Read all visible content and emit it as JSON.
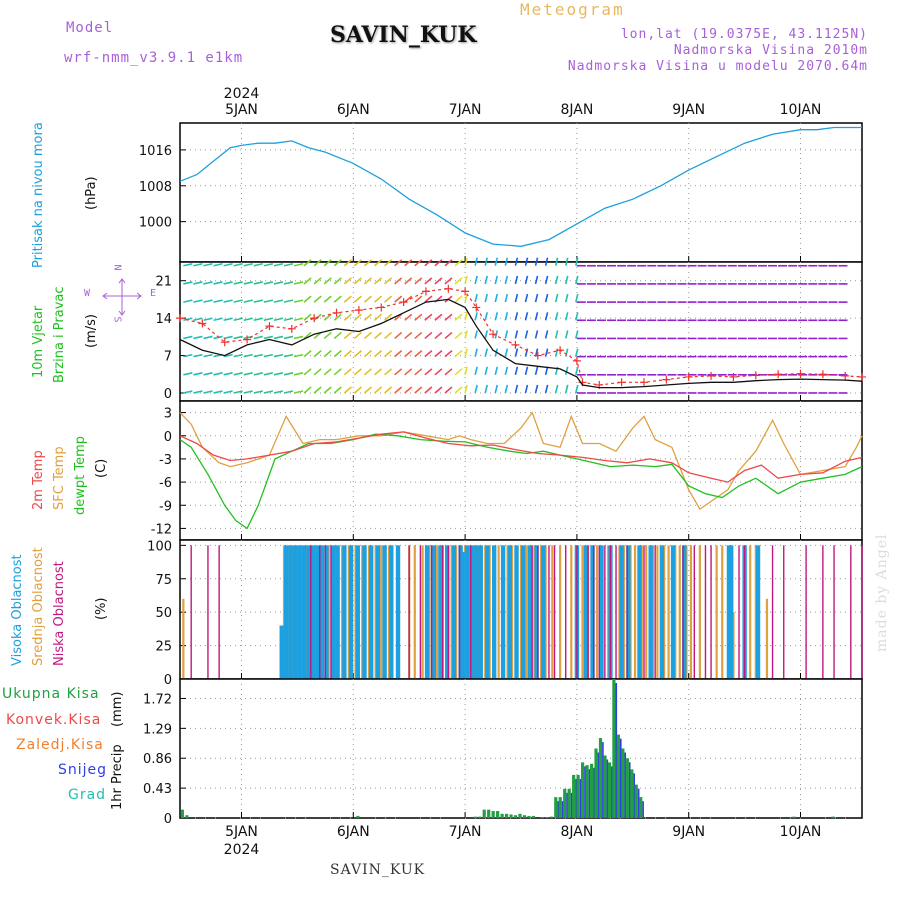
{
  "header": {
    "model_label": "Model",
    "model_name": "wrf-nmm_v3.9.1 e1km",
    "station": "SAVIN_KUK",
    "meteogram": "Meteogram",
    "lonlat": "lon,lat (19.0375E, 43.1125N)",
    "altitude": "Nadmorska Visina 2010m",
    "model_altitude": "Nadmorska Visina u modelu 2070.64m"
  },
  "footer": {
    "station": "SAVIN_KUK",
    "made_by": "made by Angel"
  },
  "colors": {
    "pressure": "#1ca0e0",
    "wind_speed": "#111111",
    "gust": "#f03030",
    "t2m": "#f04848",
    "sfc": "#e0a040",
    "dewpt": "#20c020",
    "cloud_high": "#1ca0e0",
    "cloud_mid": "#e0a040",
    "cloud_low": "#c01880",
    "precip_total": "#20a040",
    "precip_conv": "#f04848",
    "precip_frz": "#f08030",
    "precip_snow": "#3040e0",
    "precip_grad": "#20c0b0"
  },
  "chart_data": [
    {
      "type": "line",
      "id": "pressure",
      "x_unit": "days since 5JAN 2024 00UTC",
      "xlim": [
        -0.55,
        5.55
      ],
      "x_ticks": [
        0,
        1,
        2,
        3,
        4,
        5
      ],
      "x_tick_labels": [
        "5JAN",
        "6JAN",
        "7JAN",
        "8JAN",
        "9JAN",
        "10JAN"
      ],
      "x_year_label": "2024",
      "ylabel_left": "Pritisak na nivou mora",
      "ylabel_unit": "(hPa)",
      "ylim": [
        991,
        1022
      ],
      "y_ticks": [
        1000,
        1008,
        1016
      ],
      "series": [
        {
          "x": [
            -0.55,
            -0.4,
            -0.25,
            -0.1,
            0.0,
            0.15,
            0.3,
            0.45,
            0.6,
            0.75,
            1.0,
            1.25,
            1.5,
            1.75,
            2.0,
            2.25,
            2.5,
            2.75,
            3.0,
            3.25,
            3.5,
            3.75,
            4.0,
            4.25,
            4.5,
            4.75,
            5.0,
            5.15,
            5.3,
            5.45,
            5.55
          ],
          "y": [
            1009,
            1010.5,
            1013.5,
            1016.5,
            1017,
            1017.5,
            1017.5,
            1018,
            1016.5,
            1015.5,
            1013,
            1009.5,
            1005,
            1001.5,
            997.5,
            995,
            994.5,
            996,
            999.5,
            1003,
            1005,
            1008,
            1011.5,
            1014.5,
            1017.5,
            1019.5,
            1020.5,
            1020.5,
            1021,
            1021,
            1021
          ]
        }
      ]
    },
    {
      "type": "line",
      "id": "wind",
      "ylabel_left": "10m Vjetar",
      "ylabel_left2": "Brzina i Pravac",
      "ylabel_unit": "(m/s)",
      "compass_labels": {
        "n": "N",
        "s": "S",
        "e": "E",
        "w": "W"
      },
      "ylim": [
        -1.5,
        24.5
      ],
      "y_ticks": [
        0,
        7,
        14,
        21
      ],
      "series": [
        {
          "name": "wind_speed",
          "x": [
            -0.55,
            -0.35,
            -0.15,
            0.05,
            0.25,
            0.45,
            0.65,
            0.85,
            1.05,
            1.25,
            1.45,
            1.65,
            1.85,
            2.0,
            2.1,
            2.25,
            2.45,
            2.65,
            2.85,
            3.0,
            3.05,
            3.2,
            3.4,
            3.6,
            3.8,
            4.0,
            4.2,
            4.4,
            4.6,
            4.8,
            5.0,
            5.2,
            5.4,
            5.55
          ],
          "y": [
            10,
            8,
            7,
            9,
            10,
            9,
            11,
            12,
            11.5,
            13,
            15,
            17,
            17.5,
            16,
            12.5,
            8,
            5.5,
            5,
            4.5,
            3,
            1.5,
            1,
            1,
            1.2,
            1.5,
            1.8,
            2,
            2,
            2.3,
            2.5,
            2.6,
            2.5,
            2.4,
            2.2
          ]
        },
        {
          "name": "gust",
          "x": [
            -0.55,
            -0.35,
            -0.15,
            0.05,
            0.25,
            0.45,
            0.65,
            0.85,
            1.05,
            1.25,
            1.45,
            1.65,
            1.85,
            2.0,
            2.1,
            2.25,
            2.45,
            2.65,
            2.85,
            3.0,
            3.05,
            3.2,
            3.4,
            3.6,
            3.8,
            4.0,
            4.2,
            4.4,
            4.6,
            4.8,
            5.0,
            5.2,
            5.4,
            5.55
          ],
          "y": [
            14,
            13,
            9.5,
            10,
            12.5,
            12,
            14,
            15,
            15.5,
            16,
            17,
            19,
            19.5,
            19,
            16,
            11,
            9,
            7,
            8,
            6,
            2,
            1.5,
            2,
            2,
            2.5,
            3,
            3.2,
            3,
            3.3,
            3.5,
            3.6,
            3.5,
            3.2,
            3
          ]
        }
      ]
    },
    {
      "type": "line",
      "id": "temperature",
      "ylabel_lines": [
        "2m Temp",
        "SFC Temp",
        "dewpt Temp"
      ],
      "ylabel_unit": "(C)",
      "ylim": [
        -13.5,
        4.5
      ],
      "y_ticks": [
        3,
        0,
        -3,
        -6,
        -9,
        -12
      ],
      "series": [
        {
          "name": "2m Temp",
          "x": [
            -0.55,
            -0.4,
            -0.25,
            -0.1,
            0.05,
            0.25,
            0.45,
            0.65,
            0.85,
            1.05,
            1.25,
            1.45,
            1.65,
            1.85,
            2.05,
            2.25,
            2.45,
            2.65,
            2.85,
            3.05,
            3.25,
            3.45,
            3.65,
            3.85,
            4.0,
            4.2,
            4.35,
            4.5,
            4.65,
            4.8,
            5.0,
            5.2,
            5.4,
            5.55
          ],
          "y": [
            0,
            -1,
            -2.5,
            -3.2,
            -3,
            -2.5,
            -2,
            -1,
            -0.8,
            -0.3,
            0.2,
            0.5,
            -0.3,
            -1,
            -1.3,
            -1.2,
            -1.8,
            -2.3,
            -2.5,
            -2.8,
            -3.2,
            -3.5,
            -3,
            -3.5,
            -4.8,
            -5.5,
            -6,
            -4.5,
            -3.8,
            -5.5,
            -5,
            -4.8,
            -3.3,
            -2.8
          ]
        },
        {
          "name": "SFC Temp",
          "x": [
            -0.55,
            -0.45,
            -0.35,
            -0.2,
            -0.1,
            0.05,
            0.25,
            0.4,
            0.55,
            0.7,
            0.85,
            1.05,
            1.25,
            1.45,
            1.65,
            1.85,
            1.95,
            2.05,
            2.2,
            2.35,
            2.5,
            2.6,
            2.7,
            2.85,
            2.95,
            3.05,
            3.2,
            3.35,
            3.5,
            3.6,
            3.7,
            3.85,
            4.0,
            4.1,
            4.2,
            4.35,
            4.45,
            4.6,
            4.75,
            4.85,
            5.0,
            5.2,
            5.4,
            5.5,
            5.55
          ],
          "y": [
            3,
            1.5,
            -1.5,
            -3.5,
            -4,
            -3.5,
            -2.5,
            2.5,
            -1,
            -0.5,
            -0.5,
            0,
            0,
            0.5,
            0,
            -0.5,
            0,
            -0.5,
            -1,
            -1,
            1,
            3,
            -1,
            -1.5,
            2.5,
            -1,
            -1,
            -2,
            1,
            2.5,
            -0.5,
            -1.5,
            -7,
            -9.5,
            -8.5,
            -7,
            -4.5,
            -2,
            2,
            -1,
            -5,
            -4.5,
            -4,
            -1.5,
            0
          ]
        },
        {
          "name": "dewpt Temp",
          "x": [
            -0.55,
            -0.45,
            -0.3,
            -0.15,
            -0.05,
            0.05,
            0.15,
            0.3,
            0.45,
            0.6,
            0.8,
            1.0,
            1.2,
            1.4,
            1.6,
            1.8,
            2.0,
            2.2,
            2.4,
            2.55,
            2.7,
            2.85,
            3.0,
            3.15,
            3.3,
            3.5,
            3.7,
            3.85,
            4.0,
            4.15,
            4.3,
            4.45,
            4.6,
            4.8,
            5.0,
            5.2,
            5.4,
            5.55
          ],
          "y": [
            -0.5,
            -1.5,
            -5,
            -9,
            -11,
            -12,
            -9,
            -3,
            -2,
            -1,
            -1,
            -0.5,
            0.2,
            0,
            -0.5,
            -0.7,
            -0.8,
            -1.5,
            -2,
            -2.3,
            -2,
            -2.5,
            -3,
            -3.5,
            -4,
            -3.8,
            -4,
            -3.7,
            -6.5,
            -7.5,
            -8,
            -6.5,
            -5.5,
            -7.5,
            -6,
            -5.5,
            -5,
            -4
          ]
        }
      ]
    },
    {
      "type": "bar",
      "id": "clouds",
      "ylabel_lines": [
        "Visoka Oblacnost",
        "Srednja Oblacnost",
        "Niska Oblacnost"
      ],
      "ylabel_unit": "(%)",
      "ylim": [
        0,
        104
      ],
      "y_ticks": [
        0,
        25,
        50,
        75,
        100
      ],
      "low": {
        "x": [
          -0.45,
          -0.3,
          -0.2,
          0.62,
          0.7,
          0.75,
          0.8,
          1.5,
          1.6,
          1.7,
          1.8,
          1.85,
          1.95,
          2.05,
          2.6,
          2.65,
          2.75,
          2.8,
          2.9,
          3.0,
          3.1,
          3.15,
          3.2,
          3.25,
          3.3,
          3.35,
          3.45,
          3.6,
          3.7,
          3.95,
          4.05,
          4.15,
          4.2,
          4.45,
          4.5,
          4.75,
          4.85,
          5.05,
          5.2,
          5.3,
          5.45,
          5.55
        ],
        "values": [
          100,
          100,
          100,
          100,
          100,
          100,
          100,
          100,
          100,
          100,
          100,
          100,
          100,
          100,
          100,
          100,
          100,
          100,
          100,
          100,
          100,
          100,
          100,
          100,
          100,
          100,
          100,
          100,
          100,
          100,
          100,
          100,
          100,
          100,
          100,
          100,
          100,
          100,
          100,
          100,
          100,
          100
        ]
      },
      "mid": {
        "x": [
          -0.52,
          0.38,
          0.42,
          0.46,
          0.5,
          0.54,
          0.58,
          0.66,
          0.72,
          0.78,
          0.84,
          0.9,
          0.96,
          1.02,
          1.08,
          1.14,
          1.2,
          1.25,
          1.32,
          1.4,
          1.5,
          1.55,
          1.62,
          1.68,
          1.75,
          1.8,
          1.88,
          1.92,
          2.0,
          2.08,
          2.12,
          2.18,
          2.22,
          2.3,
          2.38,
          2.42,
          2.5,
          2.55,
          2.62,
          2.68,
          2.72,
          2.78,
          2.85,
          2.95,
          3.05,
          3.1,
          3.18,
          3.28,
          3.38,
          3.42,
          3.48,
          3.52,
          3.58,
          3.62,
          3.68,
          3.72,
          3.78,
          3.82,
          3.88,
          3.92,
          3.98,
          4.02,
          4.1,
          4.25,
          4.3,
          4.4,
          4.55,
          4.6,
          4.7
        ],
        "values": [
          60,
          100,
          100,
          100,
          100,
          100,
          100,
          100,
          100,
          100,
          100,
          100,
          100,
          100,
          100,
          100,
          100,
          100,
          100,
          100,
          100,
          100,
          100,
          100,
          100,
          100,
          100,
          100,
          100,
          100,
          100,
          100,
          100,
          100,
          100,
          100,
          100,
          100,
          100,
          100,
          100,
          100,
          100,
          100,
          100,
          100,
          100,
          100,
          100,
          100,
          100,
          100,
          100,
          100,
          100,
          100,
          100,
          100,
          100,
          100,
          100,
          100,
          100,
          100,
          100,
          50,
          100,
          100,
          60
        ]
      },
      "high": {
        "x": [
          0.36,
          0.4,
          0.44,
          0.48,
          0.52,
          0.56,
          0.6,
          0.64,
          0.68,
          0.72,
          0.76,
          0.82,
          0.86,
          0.92,
          0.98,
          1.04,
          1.1,
          1.16,
          1.22,
          1.28,
          1.34,
          1.4,
          1.66,
          1.72,
          1.78,
          1.84,
          1.9,
          1.96,
          1.98,
          2.02,
          2.06,
          2.1,
          2.14,
          2.2,
          2.26,
          2.34,
          2.4,
          2.46,
          2.52,
          2.58,
          2.64,
          2.7,
          3.0,
          3.08,
          3.14,
          3.22,
          3.3,
          3.4,
          3.46,
          3.56,
          3.66,
          3.76,
          3.86,
          3.96,
          4.36,
          4.38,
          4.5,
          4.62
        ],
        "values": [
          40,
          100,
          100,
          100,
          100,
          100,
          100,
          100,
          100,
          100,
          100,
          100,
          100,
          100,
          100,
          100,
          100,
          100,
          100,
          100,
          100,
          100,
          100,
          100,
          100,
          100,
          100,
          100,
          95,
          100,
          100,
          100,
          100,
          100,
          100,
          100,
          100,
          100,
          100,
          100,
          100,
          100,
          100,
          100,
          100,
          100,
          100,
          100,
          100,
          100,
          100,
          100,
          100,
          100,
          100,
          100,
          100,
          100
        ]
      }
    },
    {
      "type": "bar",
      "id": "precip",
      "ylabel_left": "1hr Precip",
      "ylabel_unit": "(mm)",
      "ylim": [
        0,
        2.0
      ],
      "y_ticks": [
        0,
        0.43,
        0.86,
        1.29,
        1.72
      ],
      "legend": [
        "Ukupna Kisa",
        "Konvek.Kisa",
        "Zaledj.Kisa",
        "Snijeg",
        "Grad"
      ],
      "x": [
        -0.52,
        -0.48,
        1.05,
        2.1,
        2.14,
        2.18,
        2.22,
        2.26,
        2.3,
        2.34,
        2.38,
        2.42,
        2.46,
        2.5,
        2.54,
        2.58,
        2.62,
        2.7,
        2.74,
        2.78,
        2.82,
        2.86,
        2.9,
        2.94,
        2.98,
        3.02,
        3.06,
        3.1,
        3.14,
        3.18,
        3.22,
        3.26,
        3.3,
        3.34,
        3.38,
        3.42,
        3.46,
        3.5,
        3.54,
        3.58,
        4.95,
        5.3
      ],
      "values": [
        0.12,
        0.04,
        0.03,
        0.02,
        0.02,
        0.12,
        0.12,
        0.1,
        0.1,
        0.06,
        0.06,
        0.05,
        0.04,
        0.06,
        0.04,
        0.03,
        0.03,
        0.01,
        0.01,
        0.02,
        0.3,
        0.3,
        0.42,
        0.42,
        0.62,
        0.62,
        0.8,
        0.76,
        0.78,
        1.0,
        1.15,
        0.9,
        0.8,
        2.0,
        1.2,
        1.0,
        0.86,
        0.7,
        0.48,
        0.3,
        0.02,
        0.02
      ]
    }
  ]
}
